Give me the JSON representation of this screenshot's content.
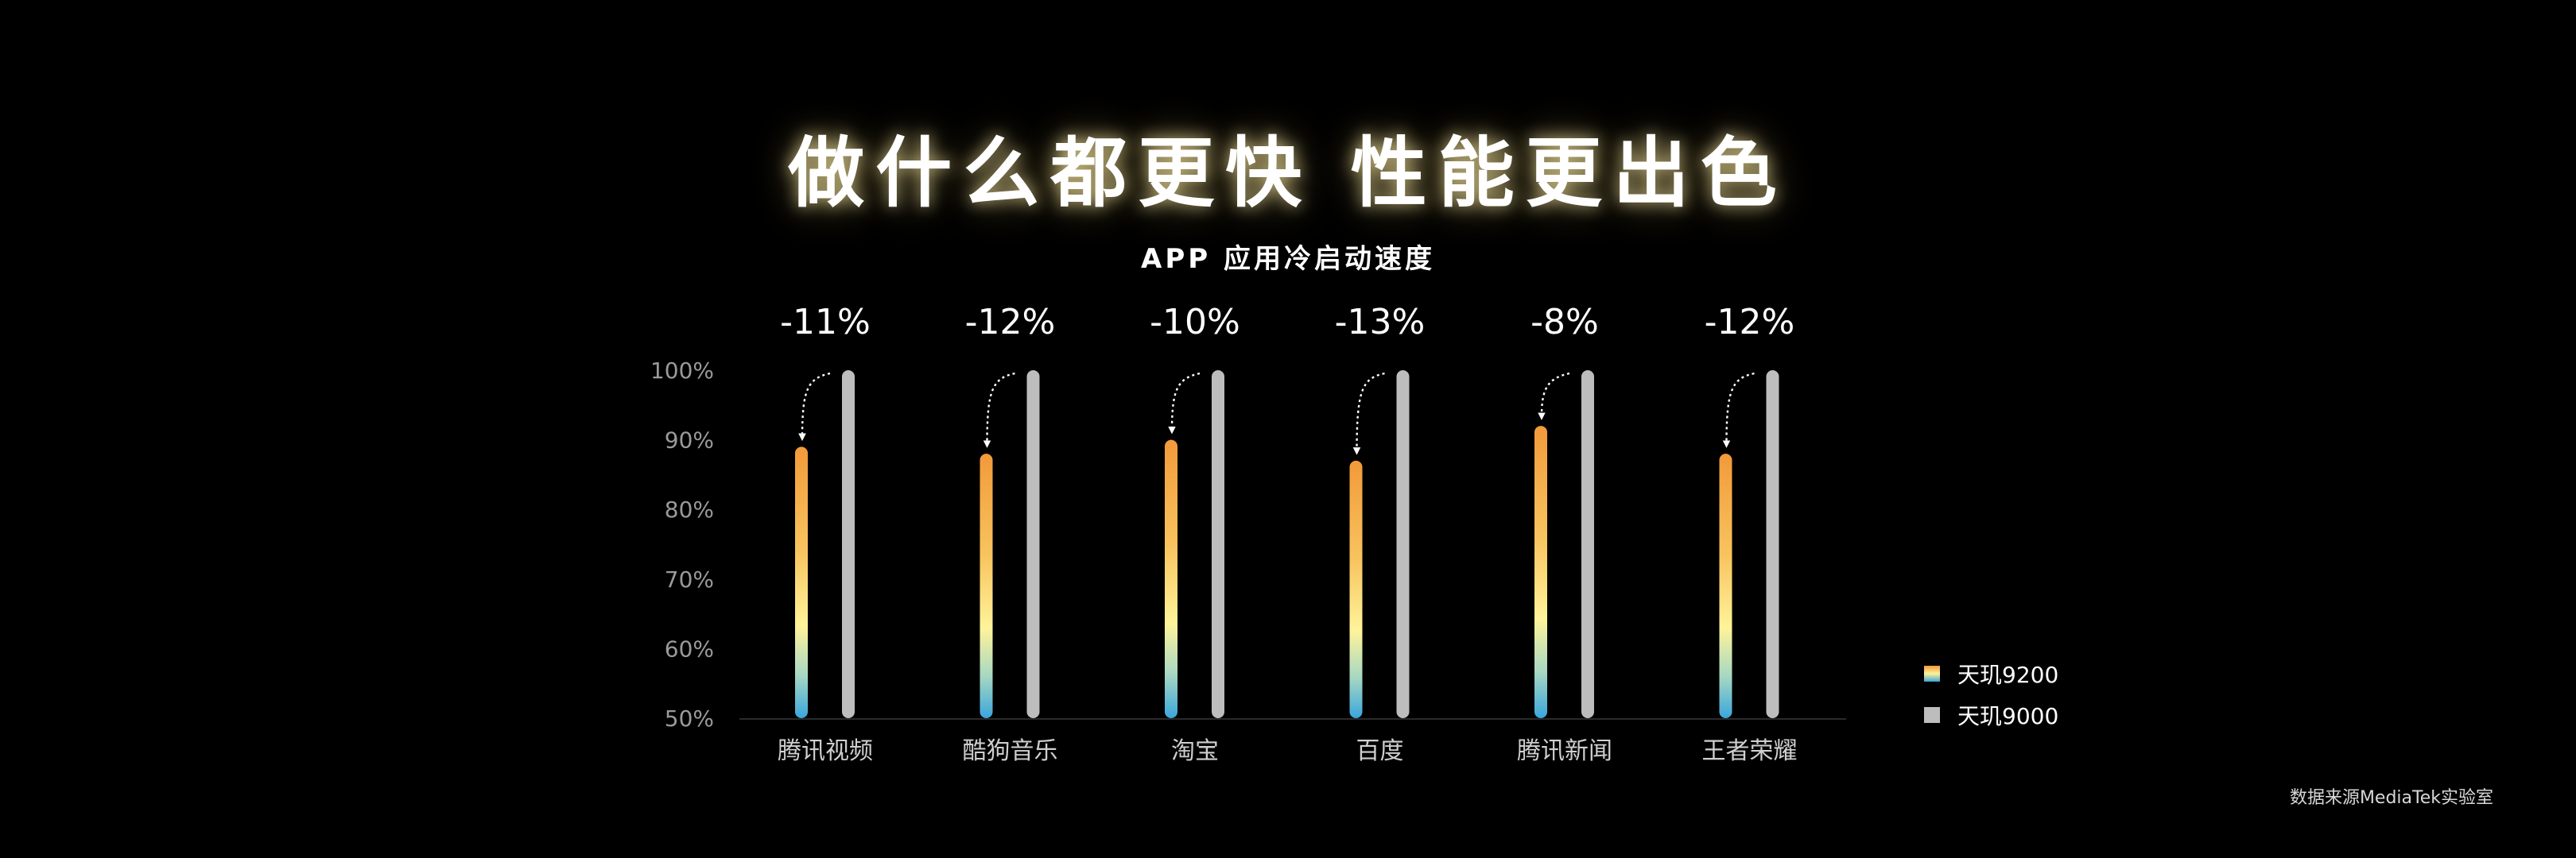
{
  "header": {
    "title": "做什么都更快 性能更出色",
    "subtitle": "APP 应用冷启动速度"
  },
  "source_note": "数据来源MediaTek实验室",
  "colors": {
    "background": "#000000",
    "series_new_top": "#f29a3a",
    "series_new_mid": "#fff39a",
    "series_new_bottom": "#3aa6dc",
    "series_old": "#bdbdbd",
    "axis_text": "#9a9a9a"
  },
  "legend_items": [
    {
      "label": "天玑9200"
    },
    {
      "label": "天玑9000"
    }
  ],
  "chart_data": {
    "type": "bar",
    "title": "APP 应用冷启动速度",
    "xlabel": "",
    "ylabel": "",
    "ylim": [
      50,
      100
    ],
    "yticks": [
      "100%",
      "90%",
      "80%",
      "70%",
      "60%",
      "50%"
    ],
    "grid": false,
    "legend_position": "right",
    "categories": [
      "腾讯视频",
      "酷狗音乐",
      "淘宝",
      "百度",
      "腾讯新闻",
      "王者荣耀"
    ],
    "series": [
      {
        "name": "天玑9200",
        "values": [
          89,
          88,
          90,
          87,
          92,
          88
        ]
      },
      {
        "name": "天玑9000",
        "values": [
          100,
          100,
          100,
          100,
          100,
          100
        ]
      }
    ],
    "annotations": [
      "-11%",
      "-12%",
      "-10%",
      "-13%",
      "-8%",
      "-12%"
    ]
  }
}
